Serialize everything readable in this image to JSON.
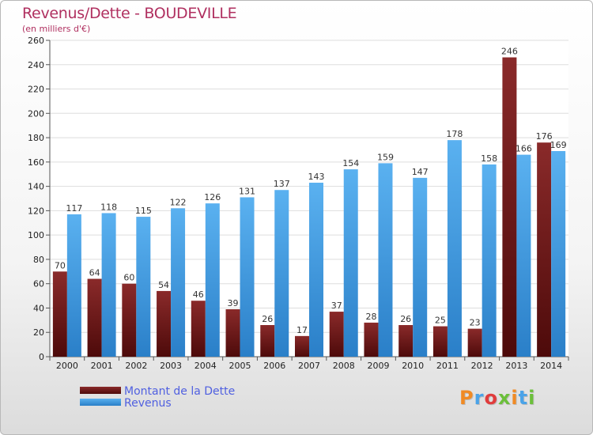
{
  "chart_data": {
    "type": "bar",
    "title": "Revenus/Dette - BOUDEVILLE",
    "subtitle": "(en milliers d'€)",
    "categories": [
      "2000",
      "2001",
      "2002",
      "2003",
      "2004",
      "2005",
      "2006",
      "2007",
      "2008",
      "2009",
      "2010",
      "2011",
      "2012",
      "2013",
      "2014"
    ],
    "series": [
      {
        "name": "Montant de la Dette",
        "color": "#7a1f1f",
        "values": [
          70,
          64,
          60,
          54,
          46,
          39,
          26,
          17,
          37,
          28,
          26,
          25,
          23,
          246,
          176
        ]
      },
      {
        "name": "Revenus",
        "color": "#4aa3e8",
        "values": [
          117,
          118,
          115,
          122,
          126,
          131,
          137,
          143,
          154,
          159,
          147,
          178,
          158,
          166,
          169
        ]
      }
    ],
    "ylim": [
      0,
      260
    ],
    "yticks": [
      0,
      20,
      40,
      60,
      80,
      100,
      120,
      140,
      160,
      180,
      200,
      220,
      240,
      260
    ],
    "grid": true,
    "legend": "bottom-left"
  },
  "logo": {
    "text": "Proxiti",
    "colors": [
      "#f08a24",
      "#4aa3e8",
      "#e03c3c",
      "#6bbf3a",
      "#f08a24",
      "#4aa3e8",
      "#6bbf3a"
    ]
  }
}
